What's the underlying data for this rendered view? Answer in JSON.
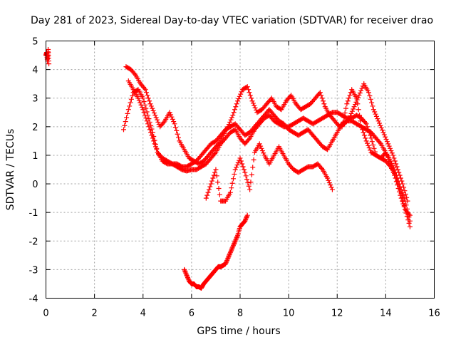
{
  "chart_data": {
    "type": "scatter",
    "title": "Day 281 of 2023, Sidereal Day-to-day VTEC variation (SDTVAR) for receiver drao",
    "xlabel": "GPS time / hours",
    "ylabel": "SDTVAR / TECUs",
    "xlim": [
      0,
      16
    ],
    "ylim": [
      -4,
      5
    ],
    "xticks": [
      "0",
      "2",
      "4",
      "6",
      "8",
      "10",
      "12",
      "14",
      "16"
    ],
    "yticks": [
      "5",
      "4",
      "3",
      "2",
      "1",
      "0",
      "-1",
      "-2",
      "-3",
      "-4"
    ],
    "grid": true,
    "marker": "+",
    "marker_color": "#ff0000",
    "series": [
      {
        "name": "s1",
        "x": [
          0.0,
          0.03,
          0.06,
          0.09,
          0.12
        ],
        "y": [
          4.5,
          4.6,
          4.3,
          4.7,
          4.2
        ]
      },
      {
        "name": "s2",
        "x": [
          3.2,
          3.4,
          3.6,
          3.8,
          4.0,
          4.2,
          4.4,
          4.6,
          4.8,
          5.0,
          5.2,
          5.4,
          5.6,
          5.8,
          6.0,
          6.2,
          6.4,
          6.6,
          6.8,
          7.0,
          7.2,
          7.4,
          7.6,
          7.8,
          8.0,
          8.2,
          8.4,
          8.6,
          8.8,
          9.0,
          9.2,
          9.4,
          9.6,
          9.8,
          10.0,
          10.2,
          10.4,
          10.6,
          10.8,
          11.0,
          11.2,
          11.4,
          11.6,
          11.8,
          12.0,
          12.2,
          12.4,
          12.6,
          12.8,
          13.0,
          13.2,
          13.4,
          13.6,
          13.8,
          14.0,
          14.2,
          14.4,
          14.6,
          14.8,
          15.0
        ],
        "y": [
          1.9,
          2.6,
          3.2,
          3.3,
          3.0,
          2.4,
          1.8,
          1.1,
          0.8,
          0.7,
          0.7,
          0.6,
          0.5,
          0.45,
          0.5,
          0.5,
          0.6,
          0.7,
          0.9,
          1.1,
          1.4,
          1.6,
          1.8,
          1.9,
          1.6,
          1.4,
          1.6,
          1.9,
          2.1,
          2.3,
          2.4,
          2.2,
          2.1,
          2.0,
          2.0,
          2.1,
          2.2,
          2.3,
          2.2,
          2.1,
          2.2,
          2.3,
          2.4,
          2.5,
          2.5,
          2.4,
          2.3,
          2.3,
          2.4,
          2.3,
          2.1,
          1.6,
          1.0,
          0.9,
          0.8,
          0.6,
          0.3,
          -0.2,
          -0.9,
          -1.5
        ]
      },
      {
        "name": "s3",
        "x": [
          3.3,
          3.5,
          3.7,
          3.9,
          4.1,
          4.3,
          4.5,
          4.7,
          4.9,
          5.1,
          5.3,
          5.5,
          5.7,
          5.9,
          6.1,
          6.3,
          6.5,
          6.7,
          6.9,
          7.1,
          7.3,
          7.5,
          7.7,
          7.9,
          8.1,
          8.3,
          8.5,
          8.7,
          8.9,
          9.1,
          9.3,
          9.5,
          9.7,
          9.9,
          10.1,
          10.3,
          10.5,
          10.7,
          10.9,
          11.1,
          11.3,
          11.5,
          11.7,
          11.9,
          12.1,
          12.3,
          12.5,
          12.7,
          12.9,
          13.1,
          13.3,
          13.5,
          13.7,
          13.9,
          14.1,
          14.3,
          14.5,
          14.7,
          14.9
        ],
        "y": [
          4.1,
          4.0,
          3.8,
          3.5,
          3.3,
          2.8,
          2.4,
          2.0,
          2.2,
          2.5,
          2.1,
          1.5,
          1.2,
          0.9,
          0.8,
          0.7,
          0.8,
          1.0,
          1.2,
          1.4,
          1.7,
          2.0,
          2.4,
          2.9,
          3.3,
          3.4,
          2.9,
          2.5,
          2.6,
          2.8,
          3.0,
          2.7,
          2.6,
          2.9,
          3.1,
          2.8,
          2.6,
          2.7,
          2.8,
          3.0,
          3.2,
          2.7,
          2.4,
          2.2,
          2.0,
          2.1,
          2.3,
          2.7,
          3.1,
          3.5,
          3.2,
          2.6,
          2.2,
          1.8,
          1.4,
          1.0,
          0.5,
          0.0,
          -0.6
        ]
      },
      {
        "name": "s4",
        "x": [
          3.4,
          3.6,
          3.8,
          4.0,
          4.2,
          4.4,
          4.6,
          4.8,
          5.0,
          5.2,
          5.4,
          5.6,
          5.8,
          6.0,
          6.2,
          6.4,
          6.6,
          6.8,
          7.0,
          7.2,
          7.4,
          7.6,
          7.8,
          8.0,
          8.2,
          8.4,
          8.6,
          8.8,
          9.0,
          9.2,
          9.4,
          9.6,
          9.8,
          10.0,
          10.2,
          10.4,
          10.6,
          10.8,
          11.0,
          11.2,
          11.4,
          11.6,
          11.8,
          12.0,
          12.2,
          12.4,
          12.6,
          12.8,
          13.0,
          13.2,
          13.4,
          13.6,
          13.8,
          14.0,
          14.2,
          14.4,
          14.6,
          14.8,
          15.0
        ],
        "y": [
          3.6,
          3.3,
          3.0,
          2.6,
          2.1,
          1.6,
          1.1,
          0.9,
          0.8,
          0.7,
          0.7,
          0.6,
          0.6,
          0.7,
          0.8,
          1.0,
          1.2,
          1.4,
          1.5,
          1.7,
          1.9,
          2.0,
          2.1,
          1.9,
          1.7,
          1.8,
          2.0,
          2.2,
          2.4,
          2.6,
          2.4,
          2.2,
          2.1,
          1.9,
          1.8,
          1.7,
          1.8,
          1.9,
          1.7,
          1.5,
          1.3,
          1.2,
          1.5,
          1.8,
          2.1,
          2.2,
          2.2,
          2.1,
          2.0,
          1.9,
          1.8,
          1.6,
          1.4,
          1.1,
          0.8,
          0.4,
          -0.1,
          -0.6,
          -1.3
        ]
      },
      {
        "name": "s5",
        "x": [
          5.7,
          5.8,
          5.9,
          6.0,
          6.1,
          6.2,
          6.3,
          6.4,
          6.5,
          6.6,
          6.7,
          6.8,
          6.9,
          7.0,
          7.1,
          7.2,
          7.3,
          7.4,
          7.5,
          7.6,
          7.7,
          7.8,
          7.9,
          8.0,
          8.1,
          8.2,
          8.3
        ],
        "y": [
          -3.0,
          -3.2,
          -3.4,
          -3.5,
          -3.5,
          -3.6,
          -3.6,
          -3.65,
          -3.5,
          -3.4,
          -3.3,
          -3.2,
          -3.1,
          -3.0,
          -2.9,
          -2.9,
          -2.85,
          -2.8,
          -2.6,
          -2.4,
          -2.2,
          -2.0,
          -1.8,
          -1.5,
          -1.4,
          -1.3,
          -1.1
        ]
      },
      {
        "name": "s6",
        "x": [
          6.6,
          6.8,
          7.0,
          7.2,
          7.4,
          7.6,
          7.8,
          8.0,
          8.2,
          8.4,
          8.6,
          8.8,
          9.0,
          9.2,
          9.4,
          9.6,
          9.8,
          10.0,
          10.2,
          10.4,
          10.6,
          10.8,
          11.0,
          11.2,
          11.4,
          11.6,
          11.8
        ],
        "y": [
          -0.5,
          0.0,
          0.5,
          -0.6,
          -0.6,
          -0.3,
          0.5,
          0.9,
          0.4,
          -0.2,
          1.1,
          1.4,
          1.0,
          0.7,
          1.0,
          1.3,
          1.0,
          0.7,
          0.5,
          0.4,
          0.5,
          0.6,
          0.6,
          0.7,
          0.5,
          0.2,
          -0.2
        ]
      },
      {
        "name": "s7",
        "x": [
          12.2,
          12.4,
          12.6,
          12.8,
          13.0,
          13.2,
          13.4,
          13.6,
          13.8,
          14.0,
          14.2,
          14.4,
          14.6,
          14.8,
          15.0
        ],
        "y": [
          2.0,
          2.8,
          3.3,
          3.0,
          2.0,
          1.5,
          1.1,
          1.0,
          0.9,
          1.1,
          0.7,
          0.2,
          -0.4,
          -0.9,
          -1.1
        ]
      }
    ]
  }
}
